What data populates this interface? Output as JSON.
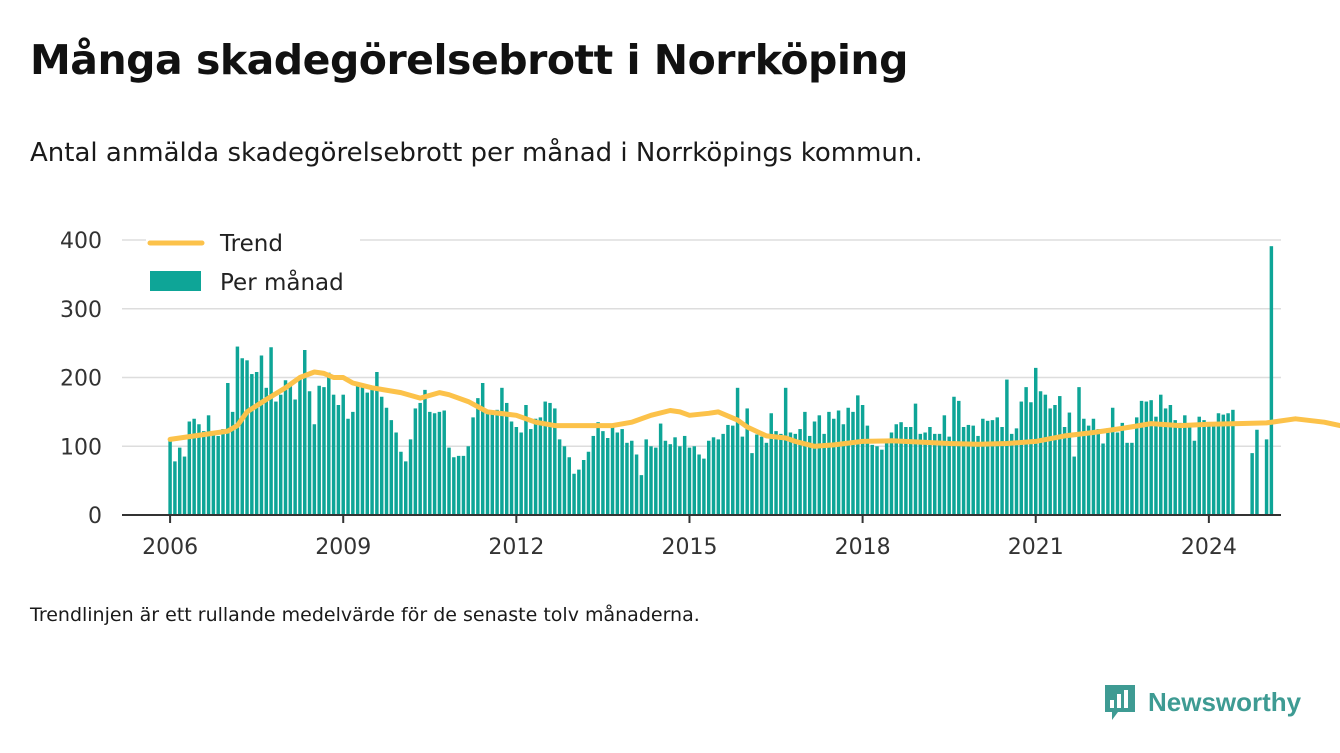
{
  "header": {
    "title": "Många skadegörelsebrott i Norrköping",
    "subtitle": "Antal anmälda skadegörelsebrott per månad i Norrköpings kommun."
  },
  "footer": {
    "note": "Trendlinjen är ett rullande medelvärde för de senaste tolv månaderna.",
    "brand": "Newsworthy"
  },
  "colors": {
    "bar": "#0ea597",
    "trend": "#fcc24a",
    "grid": "#dddddd",
    "axis": "#333333",
    "brand": "#3e9b93"
  },
  "icons": {
    "brand_logo": "bar-chart-speech-bubble-icon"
  },
  "chart_data": {
    "type": "bar",
    "legend": {
      "position": "top-left",
      "entries": [
        "Trend",
        "Per månad"
      ]
    },
    "grid": true,
    "ylim": [
      0,
      400
    ],
    "yticks": [
      0,
      100,
      200,
      300,
      400
    ],
    "xticks": [
      "2006",
      "2009",
      "2012",
      "2015",
      "2018",
      "2021",
      "2024"
    ],
    "start_month": "2006-01",
    "x_range": [
      "2005-03",
      "2025-04"
    ],
    "series": [
      {
        "name": "Per månad",
        "type": "bar",
        "values": [
          110,
          78,
          98,
          85,
          136,
          140,
          132,
          122,
          145,
          120,
          115,
          125,
          192,
          150,
          245,
          228,
          225,
          205,
          208,
          232,
          185,
          244,
          165,
          175,
          196,
          190,
          168,
          200,
          240,
          180,
          132,
          188,
          186,
          207,
          175,
          160,
          175,
          140,
          150,
          188,
          186,
          178,
          185,
          208,
          172,
          156,
          138,
          120,
          92,
          78,
          110,
          155,
          163,
          182,
          150,
          148,
          150,
          152,
          98,
          84,
          86,
          86,
          100,
          142,
          170,
          192,
          148,
          150,
          153,
          185,
          163,
          136,
          128,
          120,
          160,
          125,
          140,
          142,
          165,
          163,
          155,
          110,
          100,
          84,
          60,
          66,
          80,
          92,
          115,
          135,
          122,
          112,
          133,
          120,
          125,
          105,
          108,
          88,
          58,
          110,
          100,
          98,
          133,
          108,
          103,
          113,
          100,
          115,
          98,
          100,
          88,
          82,
          108,
          113,
          110,
          118,
          131,
          130,
          185,
          114,
          155,
          90,
          117,
          114,
          105,
          148,
          122,
          118,
          185,
          120,
          118,
          125,
          150,
          115,
          136,
          145,
          118,
          150,
          140,
          152,
          132,
          156,
          150,
          174,
          160,
          130,
          102,
          100,
          95,
          105,
          120,
          132,
          135,
          128,
          128,
          162,
          118,
          120,
          128,
          118,
          118,
          145,
          114,
          172,
          166,
          128,
          131,
          130,
          115,
          140,
          137,
          138,
          142,
          128,
          197,
          118,
          126,
          165,
          186,
          164,
          214,
          180,
          175,
          155,
          160,
          173,
          128,
          149,
          85,
          186,
          140,
          130,
          140,
          125,
          104,
          126,
          156,
          120,
          134,
          105,
          105,
          142,
          166,
          165,
          167,
          143,
          175,
          155,
          160,
          138,
          134,
          145,
          130,
          108,
          143,
          138,
          135,
          135,
          148,
          146,
          148,
          153,
          0,
          0,
          0,
          90,
          124,
          0,
          110,
          391
        ]
      },
      {
        "name": "Trend",
        "type": "line",
        "points": [
          [
            0,
            110
          ],
          [
            12,
            122
          ],
          [
            14,
            130
          ],
          [
            16,
            150
          ],
          [
            20,
            168
          ],
          [
            24,
            185
          ],
          [
            27,
            200
          ],
          [
            30,
            208
          ],
          [
            32,
            206
          ],
          [
            34,
            200
          ],
          [
            36,
            200
          ],
          [
            38,
            192
          ],
          [
            42,
            185
          ],
          [
            48,
            178
          ],
          [
            52,
            170
          ],
          [
            56,
            178
          ],
          [
            58,
            175
          ],
          [
            62,
            165
          ],
          [
            66,
            150
          ],
          [
            72,
            145
          ],
          [
            76,
            135
          ],
          [
            80,
            130
          ],
          [
            86,
            130
          ],
          [
            92,
            130
          ],
          [
            96,
            135
          ],
          [
            100,
            145
          ],
          [
            104,
            152
          ],
          [
            106,
            150
          ],
          [
            108,
            145
          ],
          [
            112,
            148
          ],
          [
            114,
            150
          ],
          [
            118,
            138
          ],
          [
            120,
            128
          ],
          [
            124,
            115
          ],
          [
            128,
            112
          ],
          [
            130,
            107
          ],
          [
            134,
            100
          ],
          [
            138,
            102
          ],
          [
            144,
            107
          ],
          [
            150,
            108
          ],
          [
            156,
            106
          ],
          [
            162,
            104
          ],
          [
            168,
            103
          ],
          [
            174,
            104
          ],
          [
            180,
            107
          ],
          [
            186,
            115
          ],
          [
            192,
            120
          ],
          [
            198,
            126
          ],
          [
            204,
            133
          ],
          [
            210,
            130
          ],
          [
            216,
            132
          ],
          [
            222,
            133
          ],
          [
            228,
            134
          ],
          [
            234,
            140
          ],
          [
            240,
            135
          ],
          [
            246,
            126
          ],
          [
            252,
            122
          ],
          [
            256,
            117
          ],
          [
            260,
            124
          ],
          [
            264,
            132
          ],
          [
            270,
            137
          ],
          [
            276,
            137
          ],
          [
            280,
            138
          ],
          [
            286,
            142
          ],
          [
            290,
            145
          ],
          [
            294,
            150
          ],
          [
            298,
            162
          ],
          [
            302,
            165
          ],
          [
            306,
            160
          ],
          [
            310,
            155
          ],
          [
            314,
            145
          ],
          [
            318,
            138
          ],
          [
            322,
            132
          ],
          [
            326,
            128
          ],
          [
            330,
            130
          ],
          [
            336,
            140
          ],
          [
            342,
            147
          ],
          [
            348,
            150
          ],
          [
            354,
            146
          ],
          [
            360,
            143
          ],
          [
            364,
            140
          ],
          [
            368,
            133
          ],
          [
            370,
            135
          ],
          [
            371,
            155
          ]
        ]
      }
    ]
  }
}
